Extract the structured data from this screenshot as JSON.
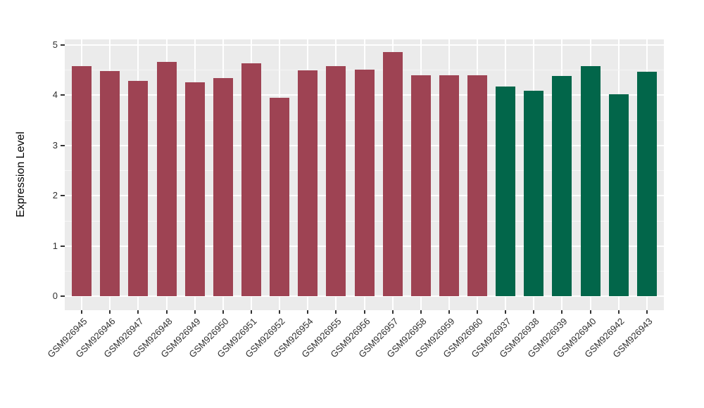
{
  "figure": {
    "panel_bg": "#EBEBEB",
    "grid_major_color": "#FFFFFF",
    "grid_minor_color": "#F6F6F6",
    "tick_color": "#333333",
    "tick_label_color": "#303030",
    "axis_title_color": "#000000",
    "background": "#FFFFFF"
  },
  "chart_data": {
    "type": "bar",
    "title": "",
    "xlabel": "",
    "ylabel": "Expression Level",
    "ylim": [
      0,
      5
    ],
    "yticks": [
      0,
      1,
      2,
      3,
      4,
      5
    ],
    "minor_step": 0.5,
    "grid": true,
    "legend": false,
    "x_tick_rotation_deg": 45,
    "categories": [
      "GSM926945",
      "GSM926946",
      "GSM926947",
      "GSM926948",
      "GSM926949",
      "GSM926950",
      "GSM926951",
      "GSM926952",
      "GSM926954",
      "GSM926955",
      "GSM926956",
      "GSM926957",
      "GSM926958",
      "GSM926959",
      "GSM926960",
      "GSM926937",
      "GSM926938",
      "GSM926939",
      "GSM926940",
      "GSM926942",
      "GSM926943"
    ],
    "values": [
      4.57,
      4.48,
      4.28,
      4.66,
      4.25,
      4.34,
      4.63,
      3.95,
      4.49,
      4.57,
      4.51,
      4.85,
      4.39,
      4.39,
      4.39,
      4.17,
      4.09,
      4.38,
      4.57,
      4.01,
      4.46
    ],
    "groups": [
      "groupA",
      "groupA",
      "groupA",
      "groupA",
      "groupA",
      "groupA",
      "groupA",
      "groupA",
      "groupA",
      "groupA",
      "groupA",
      "groupA",
      "groupA",
      "groupA",
      "groupA",
      "groupB",
      "groupB",
      "groupB",
      "groupB",
      "groupB",
      "groupB"
    ],
    "palette": {
      "groupA": "#9E4353",
      "groupB": "#02664A"
    }
  }
}
